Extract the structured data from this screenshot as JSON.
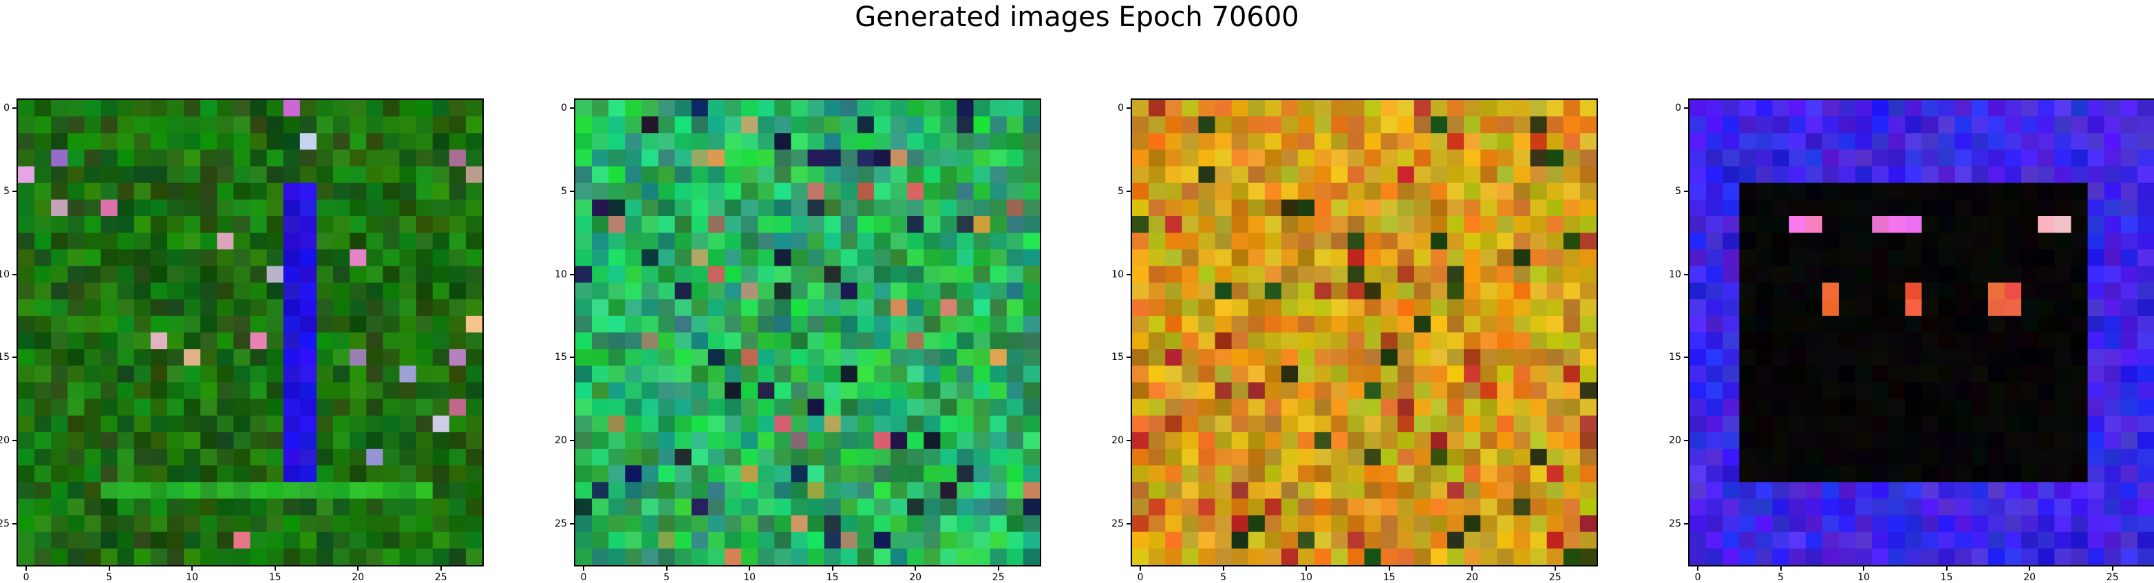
{
  "figure": {
    "title": "Generated images Epoch 70600"
  },
  "chart_data": [
    {
      "type": "heatmap",
      "image": "generated-image-1",
      "dominant_color": "#0f6a0f",
      "x_ticks": [
        "0",
        "5",
        "10",
        "15",
        "20",
        "25"
      ],
      "y_ticks": [
        "0",
        "5",
        "10",
        "15",
        "20",
        "25"
      ],
      "xlim": [
        -0.5,
        27.5
      ],
      "ylim": [
        27.5,
        -0.5
      ],
      "grid_size": [
        28,
        28
      ]
    },
    {
      "type": "heatmap",
      "image": "generated-image-2",
      "dominant_color": "#1fa84a",
      "x_ticks": [
        "0",
        "5",
        "10",
        "15",
        "20",
        "25"
      ],
      "y_ticks": [
        "0",
        "5",
        "10",
        "15",
        "20",
        "25"
      ],
      "xlim": [
        -0.5,
        27.5
      ],
      "ylim": [
        27.5,
        -0.5
      ],
      "grid_size": [
        28,
        28
      ]
    },
    {
      "type": "heatmap",
      "image": "generated-image-3",
      "dominant_color": "#c8a020",
      "x_ticks": [
        "0",
        "5",
        "10",
        "15",
        "20",
        "25"
      ],
      "y_ticks": [
        "0",
        "5",
        "10",
        "15",
        "20",
        "25"
      ],
      "xlim": [
        -0.5,
        27.5
      ],
      "ylim": [
        27.5,
        -0.5
      ],
      "grid_size": [
        28,
        28
      ]
    },
    {
      "type": "heatmap",
      "image": "generated-image-4",
      "dominant_color": "#2a14ff",
      "x_ticks": [
        "0",
        "5",
        "10",
        "15",
        "20",
        "25"
      ],
      "y_ticks": [
        "0",
        "5",
        "10",
        "15",
        "20",
        "25"
      ],
      "xlim": [
        -0.5,
        27.5
      ],
      "ylim": [
        27.5,
        -0.5
      ],
      "grid_size": [
        28,
        28
      ]
    }
  ]
}
